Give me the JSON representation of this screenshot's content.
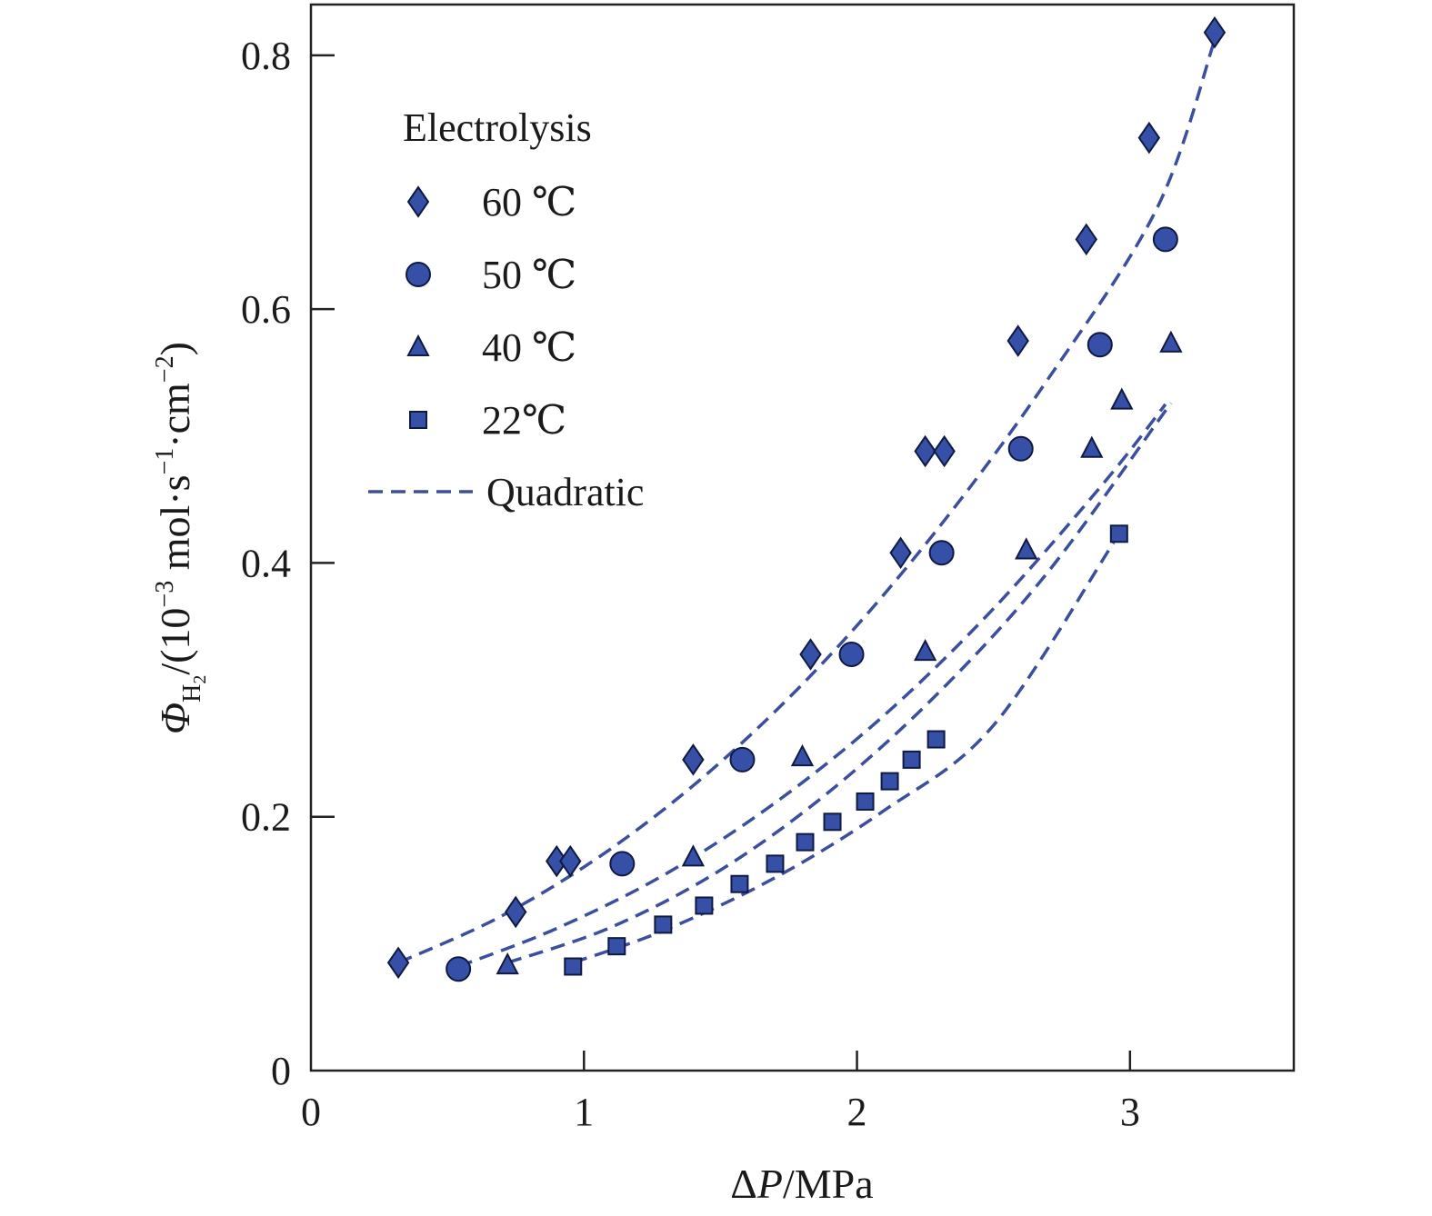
{
  "chart_data": {
    "type": "scatter",
    "xlabel": {
      "prefix": "Δ",
      "italic": "P",
      "suffix": "/MPa"
    },
    "ylabel": {
      "symbol": "Φ",
      "sub_main": "H",
      "sub_sub": "2",
      "base": "/(10",
      "exp1": "−3",
      "mid": " mol·s",
      "exp2": "−1",
      "mid2": "·cm",
      "exp3": "−2",
      "close": ")"
    },
    "xlim": [
      0,
      3.6
    ],
    "ylim": [
      0,
      0.84
    ],
    "xticks": [
      0,
      1,
      2,
      3
    ],
    "xtick_labels": [
      "0",
      "1",
      "2",
      "3"
    ],
    "yticks": [
      0,
      0.2,
      0.4,
      0.6,
      0.8
    ],
    "ytick_labels": [
      "0",
      "0.2",
      "0.4",
      "0.6",
      "0.8"
    ],
    "legend": {
      "title": "Electrolysis",
      "placement": "top-left"
    },
    "colors": {
      "marker_fill": "#3550a6",
      "marker_edge": "#101a40",
      "fit_line": "#3b4f9e",
      "axis": "#222222"
    },
    "series": [
      {
        "name": "60 ℃",
        "marker": "diamond",
        "x": [
          0.32,
          0.75,
          0.9,
          0.95,
          1.4,
          1.83,
          2.16,
          2.25,
          2.32,
          2.59,
          2.84,
          3.07,
          3.31
        ],
        "y": [
          0.085,
          0.125,
          0.165,
          0.165,
          0.245,
          0.328,
          0.408,
          0.488,
          0.488,
          0.575,
          0.655,
          0.735,
          0.818
        ]
      },
      {
        "name": "50 ℃",
        "marker": "circle",
        "x": [
          0.54,
          1.14,
          1.58,
          1.98,
          2.31,
          2.6,
          2.89,
          3.13
        ],
        "y": [
          0.08,
          0.163,
          0.245,
          0.328,
          0.408,
          0.49,
          0.572,
          0.655
        ]
      },
      {
        "name": "40 ℃",
        "marker": "triangle",
        "x": [
          0.72,
          1.4,
          1.8,
          2.25,
          2.62,
          2.86,
          2.97,
          3.15
        ],
        "y": [
          0.083,
          0.168,
          0.247,
          0.33,
          0.41,
          0.49,
          0.528,
          0.573
        ]
      },
      {
        "name": "22℃",
        "marker": "square",
        "x": [
          0.96,
          1.12,
          1.29,
          1.44,
          1.57,
          1.7,
          1.81,
          1.91,
          2.03,
          2.12,
          2.2,
          2.29,
          2.96
        ],
        "y": [
          0.082,
          0.098,
          0.115,
          0.13,
          0.147,
          0.163,
          0.18,
          0.196,
          0.212,
          0.228,
          0.245,
          0.261,
          0.423
        ]
      }
    ],
    "fits": [
      {
        "name": "Quadratic",
        "x": [
          0.32,
          0.7,
          1.1,
          1.5,
          1.9,
          2.3,
          2.7,
          3.1,
          3.31
        ],
        "y": [
          0.085,
          0.122,
          0.175,
          0.243,
          0.327,
          0.428,
          0.545,
          0.68,
          0.812
        ]
      },
      {
        "name": "Quadratic",
        "x": [
          0.54,
          0.9,
          1.3,
          1.7,
          2.1,
          2.5,
          2.9,
          3.13
        ],
        "y": [
          0.082,
          0.112,
          0.155,
          0.211,
          0.28,
          0.364,
          0.462,
          0.525
        ]
      },
      {
        "name": "Quadratic",
        "x": [
          0.72,
          1.1,
          1.5,
          1.9,
          2.3,
          2.7,
          3.15
        ],
        "y": [
          0.085,
          0.113,
          0.158,
          0.22,
          0.298,
          0.393,
          0.526
        ]
      },
      {
        "name": "Quadratic",
        "x": [
          0.96,
          1.3,
          1.7,
          2.1,
          2.5,
          2.94
        ],
        "y": [
          0.085,
          0.111,
          0.152,
          0.205,
          0.272,
          0.416
        ]
      }
    ]
  }
}
